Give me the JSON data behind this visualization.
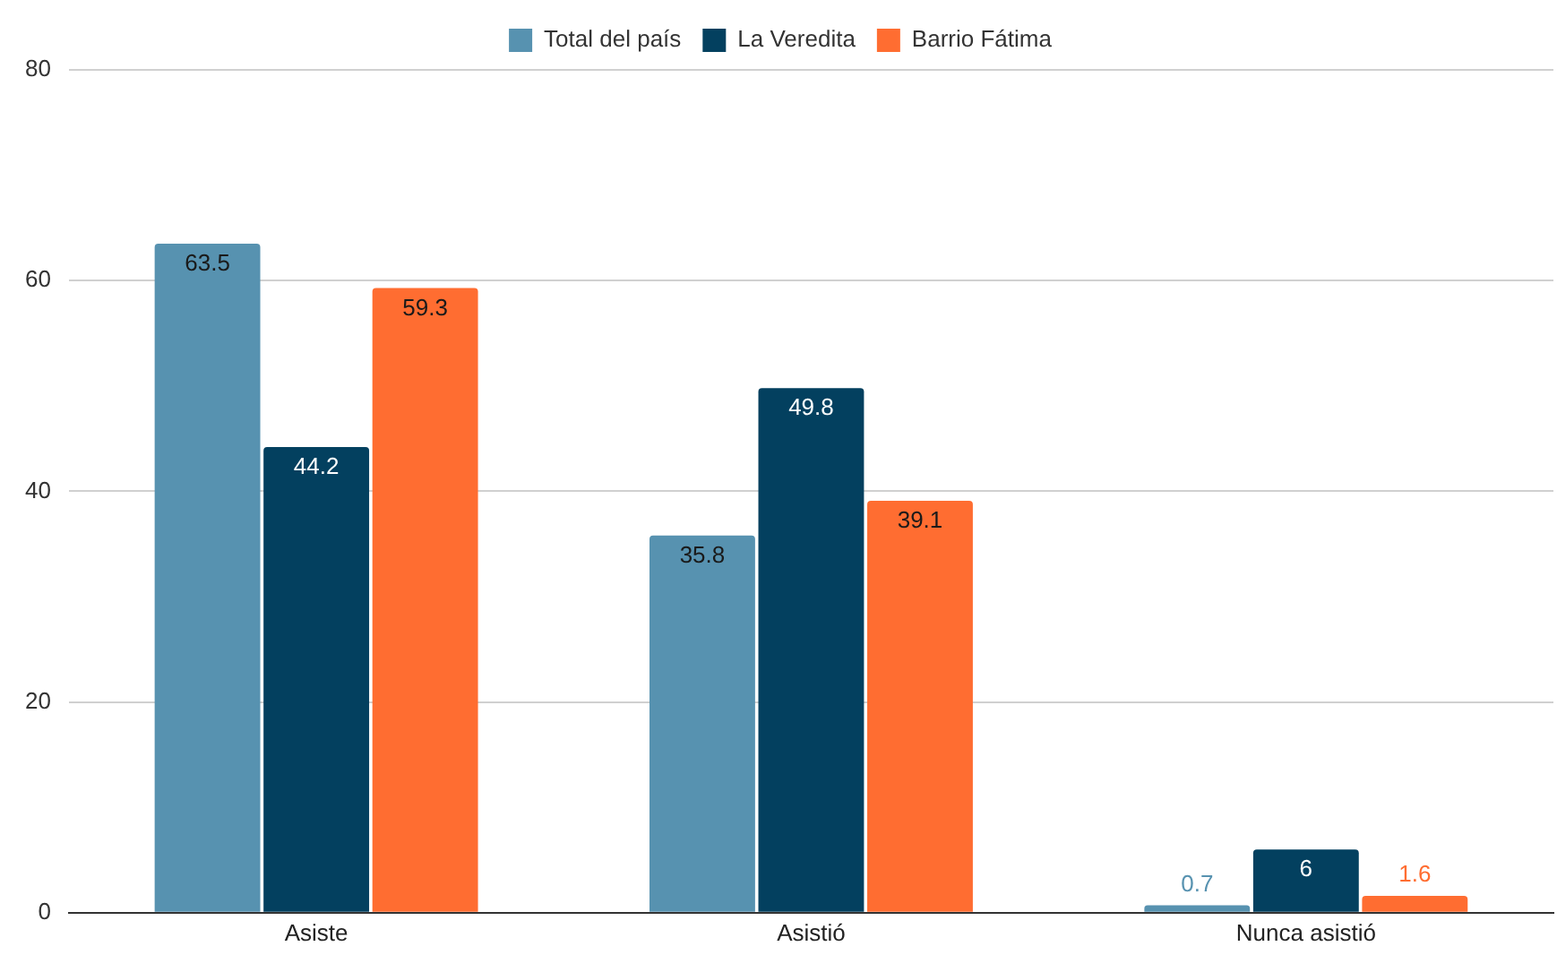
{
  "chart_data": {
    "type": "bar",
    "categories": [
      "Asiste",
      "Asistió",
      "Nunca asistió"
    ],
    "series": [
      {
        "name": "Total del país",
        "color": "#5792b0",
        "values": [
          63.5,
          35.8,
          0.7
        ]
      },
      {
        "name": "La Veredita",
        "color": "#03405f",
        "values": [
          44.2,
          49.8,
          6
        ]
      },
      {
        "name": "Barrio Fátima",
        "color": "#ff6d31",
        "values": [
          59.3,
          39.1,
          1.6
        ]
      }
    ],
    "ylim": [
      0,
      80
    ],
    "yticks": [
      0,
      20,
      40,
      60,
      80
    ],
    "grid": "y",
    "legend": "top",
    "data_labels": true
  }
}
